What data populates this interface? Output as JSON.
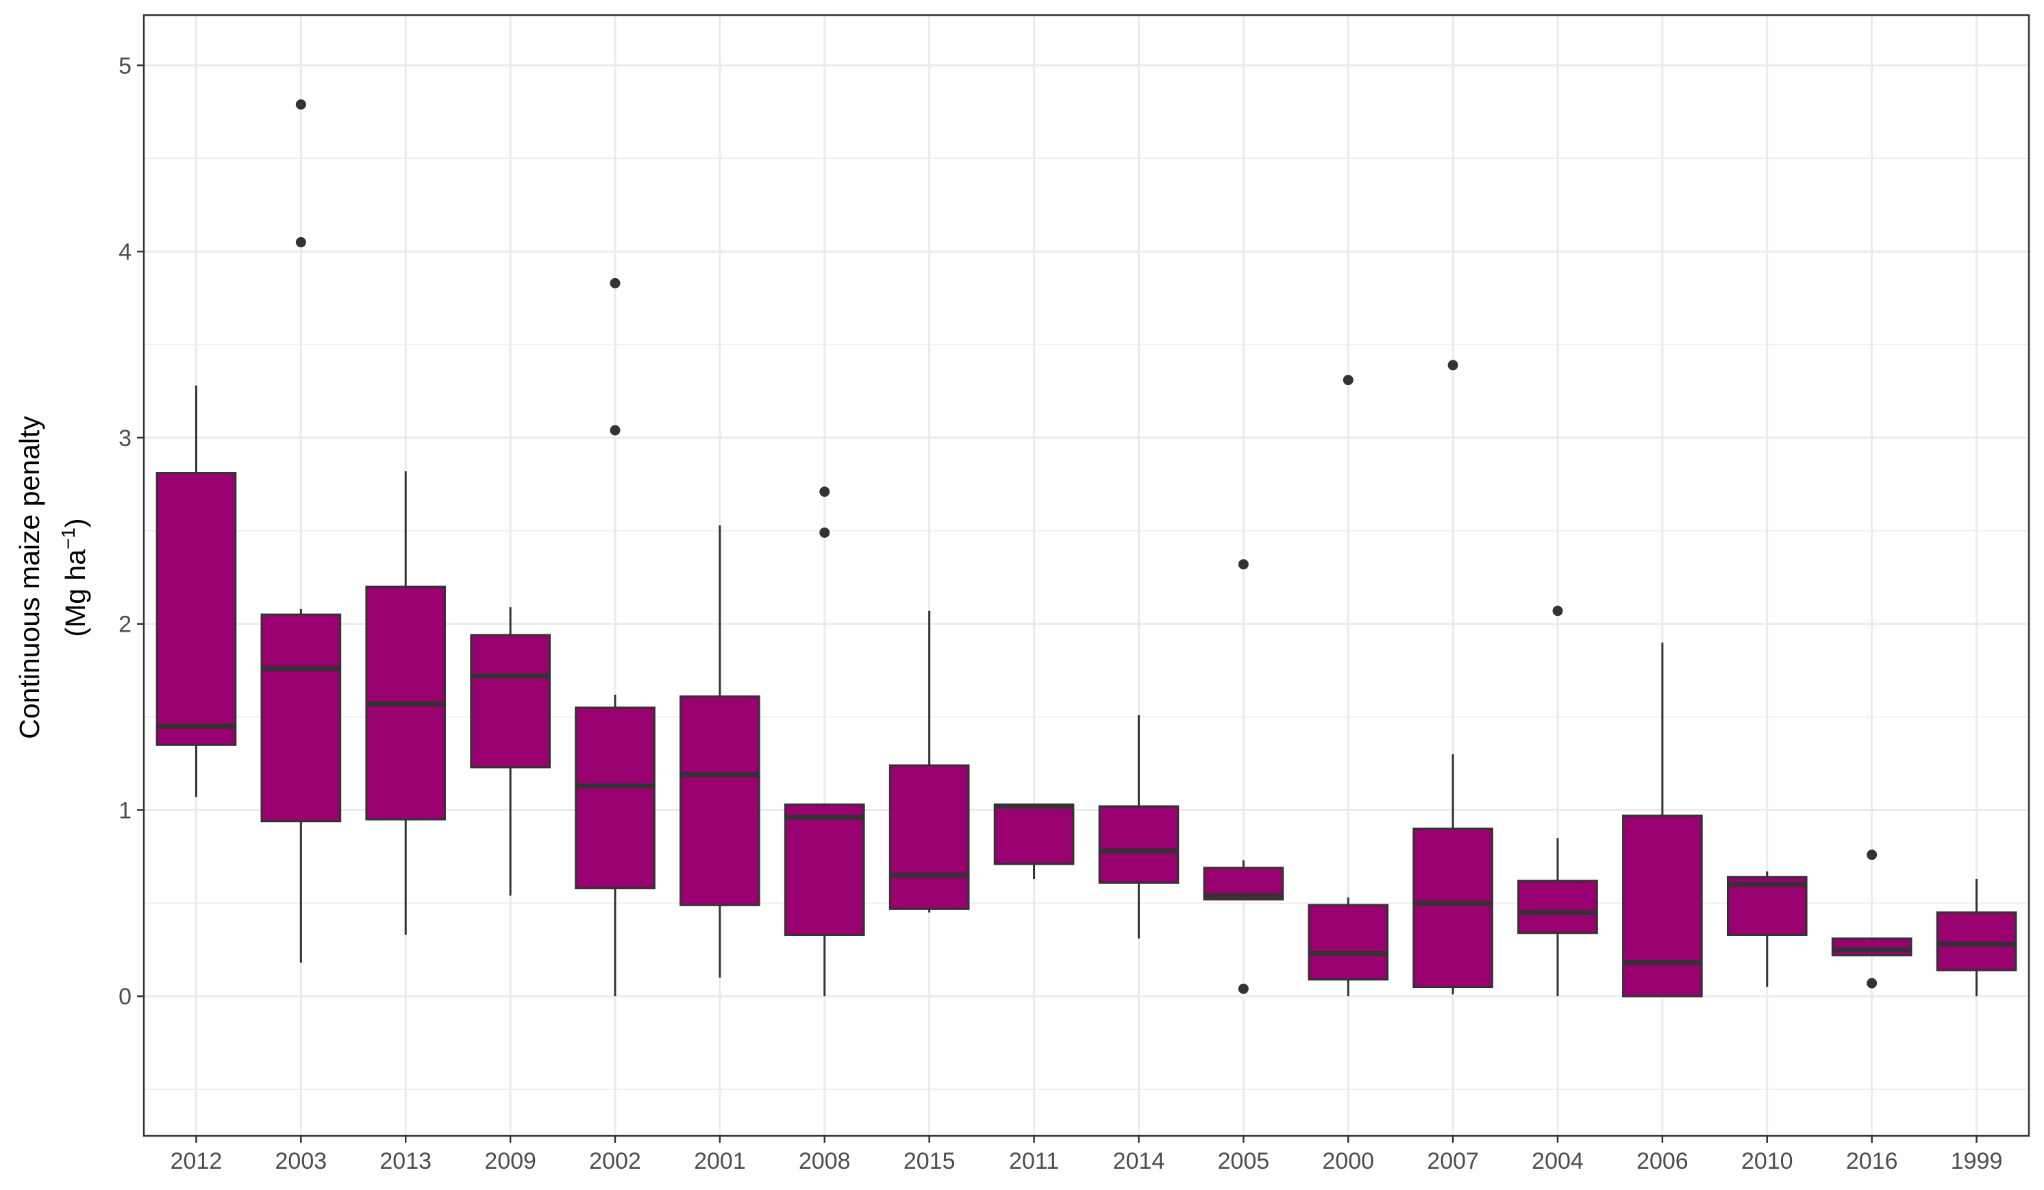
{
  "chart_data": {
    "type": "boxplot",
    "title": "",
    "xlabel": "",
    "ylabel": "Continuous maize penalty",
    "ylabel_unit": {
      "prefix": "(Mg  ha",
      "superscript": "−1",
      "suffix": ")"
    },
    "ylim": [
      -0.75,
      5.27
    ],
    "yticks": [
      0,
      1,
      2,
      3,
      4,
      5
    ],
    "grid": true,
    "legend": "none",
    "colors": {
      "fill": "#990070",
      "outline": "#333333",
      "grid": "#ebebeb",
      "panel_border": "#333333",
      "outlier": "#333333"
    },
    "categories": [
      "2012",
      "2003",
      "2013",
      "2009",
      "2002",
      "2001",
      "2008",
      "2015",
      "2011",
      "2014",
      "2005",
      "2000",
      "2007",
      "2004",
      "2006",
      "2010",
      "2016",
      "1999"
    ],
    "boxes": [
      {
        "category": "2012",
        "whisker_low": 1.07,
        "q1": 1.35,
        "median": 1.45,
        "q3": 2.81,
        "whisker_high": 3.28,
        "outliers": []
      },
      {
        "category": "2003",
        "whisker_low": 0.18,
        "q1": 0.94,
        "median": 1.76,
        "q3": 2.05,
        "whisker_high": 2.08,
        "outliers": [
          4.79,
          4.05
        ]
      },
      {
        "category": "2013",
        "whisker_low": 0.33,
        "q1": 0.95,
        "median": 1.57,
        "q3": 2.2,
        "whisker_high": 2.82,
        "outliers": []
      },
      {
        "category": "2009",
        "whisker_low": 0.54,
        "q1": 1.23,
        "median": 1.72,
        "q3": 1.94,
        "whisker_high": 2.09,
        "outliers": []
      },
      {
        "category": "2002",
        "whisker_low": 0.0,
        "q1": 0.58,
        "median": 1.13,
        "q3": 1.55,
        "whisker_high": 1.62,
        "outliers": [
          3.83,
          3.04
        ]
      },
      {
        "category": "2001",
        "whisker_low": 0.1,
        "q1": 0.49,
        "median": 1.19,
        "q3": 1.61,
        "whisker_high": 2.53,
        "outliers": []
      },
      {
        "category": "2008",
        "whisker_low": 0.0,
        "q1": 0.33,
        "median": 0.96,
        "q3": 1.03,
        "whisker_high": 1.03,
        "outliers": [
          2.71,
          2.49
        ]
      },
      {
        "category": "2015",
        "whisker_low": 0.45,
        "q1": 0.47,
        "median": 0.65,
        "q3": 1.24,
        "whisker_high": 2.07,
        "outliers": []
      },
      {
        "category": "2011",
        "whisker_low": 0.63,
        "q1": 0.71,
        "median": 1.02,
        "q3": 1.03,
        "whisker_high": 1.03,
        "outliers": []
      },
      {
        "category": "2014",
        "whisker_low": 0.31,
        "q1": 0.61,
        "median": 0.78,
        "q3": 1.02,
        "whisker_high": 1.51,
        "outliers": []
      },
      {
        "category": "2005",
        "whisker_low": 0.52,
        "q1": 0.52,
        "median": 0.54,
        "q3": 0.69,
        "whisker_high": 0.73,
        "outliers": [
          2.32,
          0.04
        ]
      },
      {
        "category": "2000",
        "whisker_low": 0.0,
        "q1": 0.09,
        "median": 0.23,
        "q3": 0.49,
        "whisker_high": 0.53,
        "outliers": [
          3.31
        ]
      },
      {
        "category": "2007",
        "whisker_low": 0.01,
        "q1": 0.05,
        "median": 0.5,
        "q3": 0.9,
        "whisker_high": 1.3,
        "outliers": [
          3.39
        ]
      },
      {
        "category": "2004",
        "whisker_low": 0.0,
        "q1": 0.34,
        "median": 0.45,
        "q3": 0.62,
        "whisker_high": 0.85,
        "outliers": [
          2.07
        ]
      },
      {
        "category": "2006",
        "whisker_low": 0.0,
        "q1": 0.0,
        "median": 0.18,
        "q3": 0.97,
        "whisker_high": 1.9,
        "outliers": []
      },
      {
        "category": "2010",
        "whisker_low": 0.05,
        "q1": 0.33,
        "median": 0.6,
        "q3": 0.64,
        "whisker_high": 0.67,
        "outliers": []
      },
      {
        "category": "2016",
        "whisker_low": 0.22,
        "q1": 0.22,
        "median": 0.25,
        "q3": 0.31,
        "whisker_high": 0.31,
        "outliers": [
          0.76,
          0.07
        ]
      },
      {
        "category": "1999",
        "whisker_low": 0.0,
        "q1": 0.14,
        "median": 0.28,
        "q3": 0.45,
        "whisker_high": 0.63,
        "outliers": []
      }
    ]
  }
}
